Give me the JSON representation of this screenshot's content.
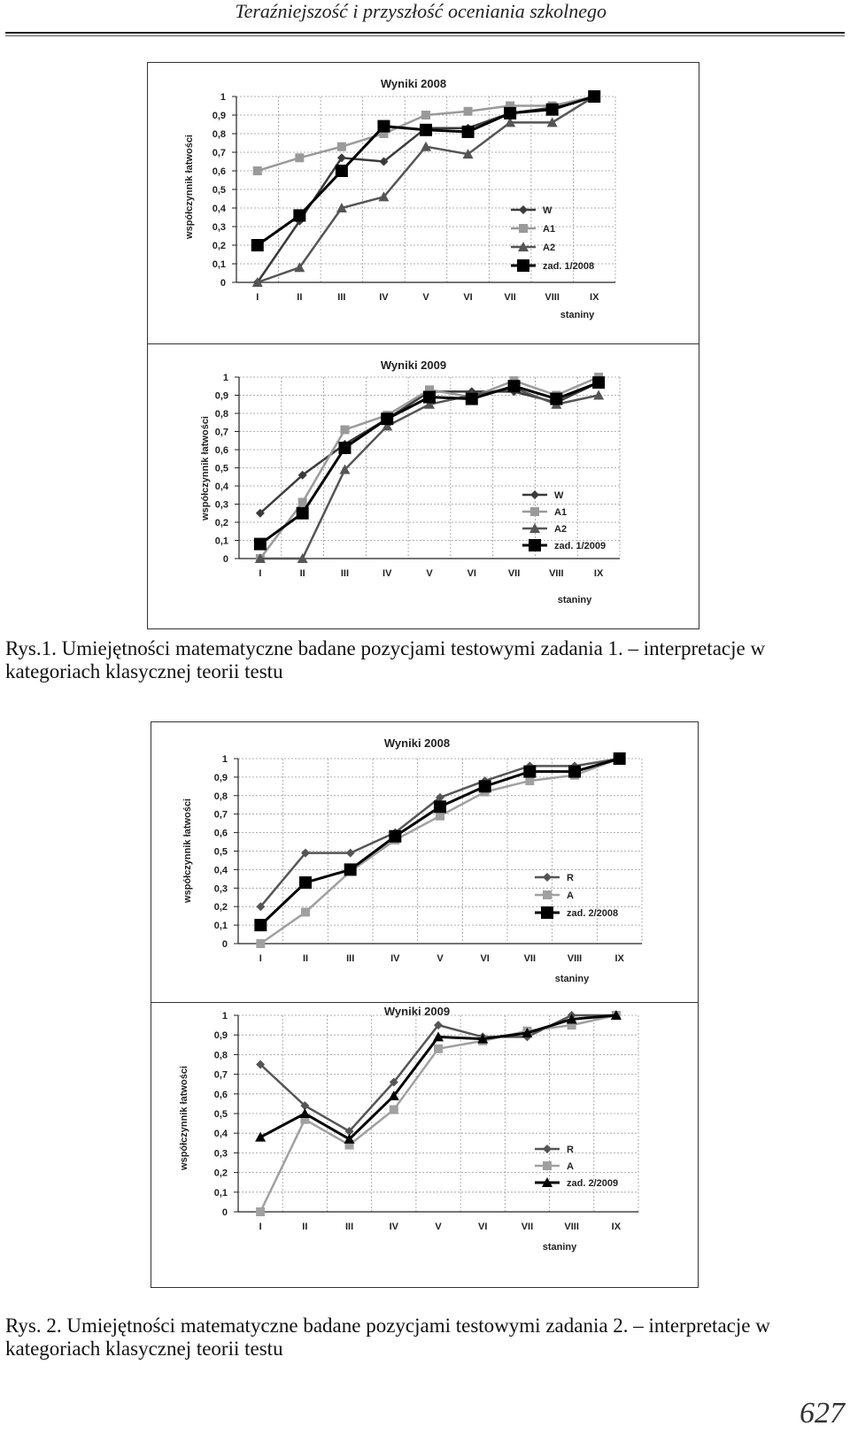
{
  "header": {
    "title": "Teraźniejszość i przyszłość oceniania szkolnego"
  },
  "figure1": {
    "caption": "Rys.1. Umiejętności matematyczne badane pozycjami testowymi zadania 1. – interpretacje w kategoriach klasycznej teorii testu"
  },
  "figure2": {
    "caption": "Rys. 2. Umiejętności matematyczne badane pozycjami testowymi zadania 2. – interpretacje w kategoriach klasycznej teorii testu"
  },
  "page_number": "627",
  "chart_data": [
    {
      "type": "line",
      "title": "Wyniki 2008",
      "xlabel": "staniny",
      "ylabel": "współczynnik łatwości",
      "ylim": [
        0,
        1
      ],
      "categories": [
        "I",
        "II",
        "III",
        "IV",
        "V",
        "VI",
        "VII",
        "VIII",
        "IX"
      ],
      "y_ticks": [
        "0",
        "0,1",
        "0,2",
        "0,3",
        "0,4",
        "0,5",
        "0,6",
        "0,7",
        "0,8",
        "0,9",
        "1"
      ],
      "legend_position": "right",
      "series": [
        {
          "name": "W",
          "marker": "diamond",
          "color": "#3a3a3a",
          "values": [
            0,
            0.33,
            0.67,
            0.65,
            0.83,
            0.83,
            0.91,
            0.94,
            1.0
          ]
        },
        {
          "name": "A1",
          "marker": "square",
          "color": "#9a9a9a",
          "values": [
            0.6,
            0.67,
            0.73,
            0.8,
            0.9,
            0.92,
            0.95,
            0.95,
            1.0
          ]
        },
        {
          "name": "A2",
          "marker": "triangle",
          "color": "#555555",
          "values": [
            0,
            0.08,
            0.4,
            0.46,
            0.73,
            0.69,
            0.86,
            0.86,
            1.0
          ]
        },
        {
          "name": "zad. 1/2008",
          "marker": "bigsquare",
          "color": "#000000",
          "values": [
            0.2,
            0.36,
            0.6,
            0.84,
            0.82,
            0.81,
            0.91,
            0.93,
            1.0
          ]
        }
      ]
    },
    {
      "type": "line",
      "title": "Wyniki 2009",
      "xlabel": "staniny",
      "ylabel": "współczynnik łatwości",
      "ylim": [
        0,
        1
      ],
      "categories": [
        "I",
        "II",
        "III",
        "IV",
        "V",
        "VI",
        "VII",
        "VIII",
        "IX"
      ],
      "y_ticks": [
        "0",
        "0,1",
        "0,2",
        "0,3",
        "0,4",
        "0,5",
        "0,6",
        "0,7",
        "0,8",
        "0,9",
        "1"
      ],
      "legend_position": "right",
      "series": [
        {
          "name": "W",
          "marker": "diamond",
          "color": "#3a3a3a",
          "values": [
            0.25,
            0.46,
            0.63,
            0.77,
            0.92,
            0.92,
            0.92,
            0.86,
            0.97
          ]
        },
        {
          "name": "A1",
          "marker": "square",
          "color": "#9a9a9a",
          "values": [
            0,
            0.31,
            0.71,
            0.79,
            0.93,
            0.89,
            0.98,
            0.9,
            1.0
          ]
        },
        {
          "name": "A2",
          "marker": "triangle",
          "color": "#555555",
          "values": [
            0,
            0,
            0.49,
            0.73,
            0.85,
            0.9,
            0.94,
            0.85,
            0.9
          ]
        },
        {
          "name": "zad. 1/2009",
          "marker": "bigsquare",
          "color": "#000000",
          "values": [
            0.08,
            0.25,
            0.61,
            0.77,
            0.89,
            0.88,
            0.95,
            0.88,
            0.97
          ]
        }
      ]
    },
    {
      "type": "line",
      "title": "Wyniki 2008",
      "xlabel": "staniny",
      "ylabel": "współczynnik łatwości",
      "ylim": [
        0,
        1
      ],
      "categories": [
        "I",
        "II",
        "III",
        "IV",
        "V",
        "VI",
        "VII",
        "VIII",
        "IX"
      ],
      "y_ticks": [
        "0",
        "0,1",
        "0,2",
        "0,3",
        "0,4",
        "0,5",
        "0,6",
        "0,7",
        "0,8",
        "0,9",
        "1"
      ],
      "legend_position": "right",
      "series": [
        {
          "name": "R",
          "marker": "diamond",
          "color": "#555555",
          "values": [
            0.2,
            0.49,
            0.49,
            0.6,
            0.79,
            0.88,
            0.96,
            0.96,
            1.0
          ]
        },
        {
          "name": "A",
          "marker": "square",
          "color": "#a0a0a0",
          "values": [
            0,
            0.17,
            0.39,
            0.56,
            0.69,
            0.82,
            0.88,
            0.91,
            1.0
          ]
        },
        {
          "name": "zad. 2/2008",
          "marker": "bigsquare",
          "color": "#000000",
          "values": [
            0.1,
            0.33,
            0.4,
            0.58,
            0.74,
            0.85,
            0.93,
            0.93,
            1.0
          ]
        }
      ]
    },
    {
      "type": "line",
      "title": "Wyniki 2009",
      "xlabel": "staniny",
      "ylabel": "współczynnik łatwości",
      "ylim": [
        0,
        1
      ],
      "categories": [
        "I",
        "II",
        "III",
        "IV",
        "V",
        "VI",
        "VII",
        "VIII",
        "IX"
      ],
      "y_ticks": [
        "0",
        "0,1",
        "0,2",
        "0,3",
        "0,4",
        "0,5",
        "0,6",
        "0,7",
        "0,8",
        "0,9",
        "1"
      ],
      "legend_position": "right",
      "series": [
        {
          "name": "R",
          "marker": "diamond",
          "color": "#555555",
          "values": [
            0.75,
            0.54,
            0.41,
            0.66,
            0.95,
            0.89,
            0.89,
            1.0,
            1.0
          ]
        },
        {
          "name": "A",
          "marker": "square",
          "color": "#a0a0a0",
          "values": [
            0,
            0.47,
            0.34,
            0.52,
            0.83,
            0.87,
            0.92,
            0.95,
            1.0
          ]
        },
        {
          "name": "zad. 2/2009",
          "marker": "triangle",
          "color": "#000000",
          "values": [
            0.38,
            0.5,
            0.37,
            0.59,
            0.89,
            0.88,
            0.91,
            0.98,
            1.0
          ]
        }
      ]
    }
  ]
}
